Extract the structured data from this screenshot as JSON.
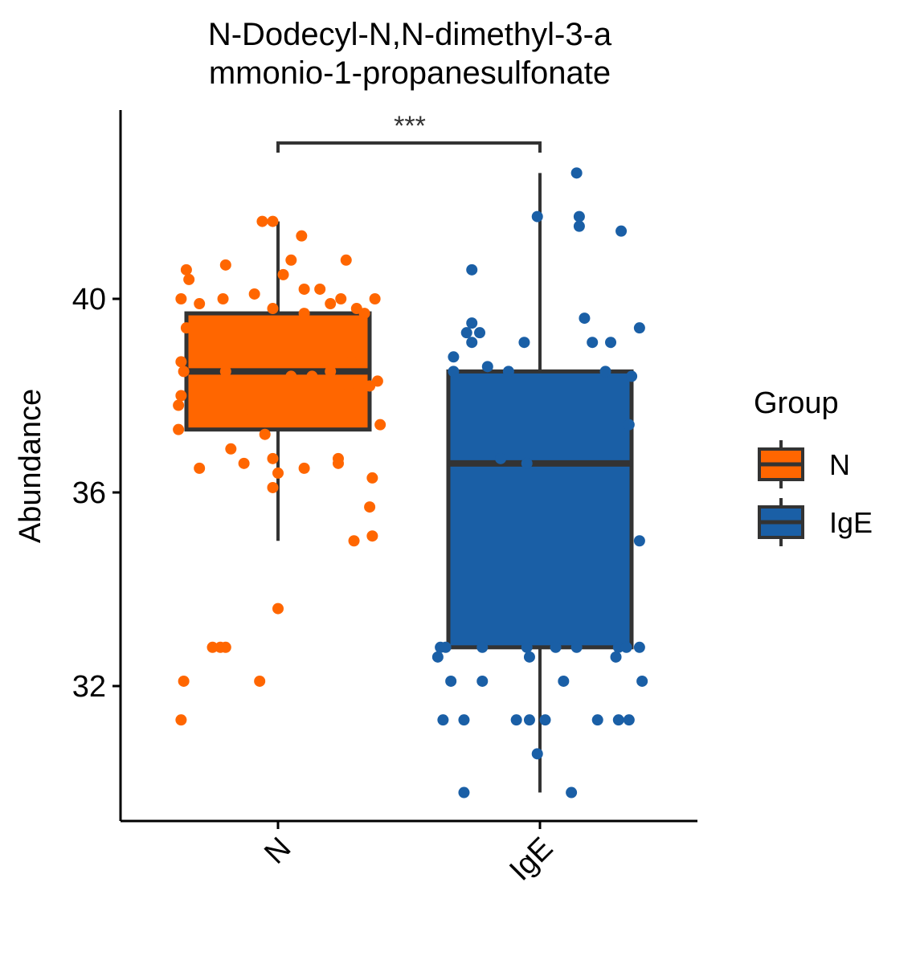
{
  "chart_data": {
    "type": "box",
    "title_lines": [
      "N-Dodecyl-N,N-dimethyl-3-a",
      "mmonio-1-propanesulfonate"
    ],
    "ylabel": "Abundance",
    "xlabel": "",
    "categories": [
      "N",
      "IgE"
    ],
    "y_ticks": [
      32,
      36,
      40
    ],
    "ylim": [
      29.4,
      43.6
    ],
    "legend": {
      "title": "Group",
      "placement": "right",
      "entries": [
        "N",
        "IgE"
      ]
    },
    "significance": {
      "groups": [
        "N",
        "IgE"
      ],
      "label": "***"
    },
    "colors": {
      "N": "#FF6600",
      "IgE": "#1A5FA6",
      "box_edge": "#333333"
    },
    "boxes": [
      {
        "group": "N",
        "whisker_low": 35.0,
        "q1": 37.3,
        "median": 38.5,
        "q3": 39.7,
        "whisker_high": 41.6
      },
      {
        "group": "IgE",
        "whisker_low": 29.8,
        "q1": 32.8,
        "median": 36.6,
        "q3": 38.5,
        "whisker_high": 42.6
      }
    ],
    "points": {
      "N": [
        [
          -0.37,
          40.0
        ],
        [
          -0.35,
          40.6
        ],
        [
          -0.34,
          40.4
        ],
        [
          -0.3,
          39.9
        ],
        [
          -0.21,
          40.0
        ],
        [
          -0.2,
          40.7
        ],
        [
          -0.09,
          40.1
        ],
        [
          -0.06,
          41.6
        ],
        [
          -0.02,
          41.6
        ],
        [
          0.05,
          40.8
        ],
        [
          0.09,
          41.3
        ],
        [
          0.02,
          40.5
        ],
        [
          0.1,
          40.2
        ],
        [
          0.16,
          40.2
        ],
        [
          0.2,
          39.9
        ],
        [
          0.24,
          40.0
        ],
        [
          0.26,
          40.8
        ],
        [
          0.37,
          40.0
        ],
        [
          -0.35,
          39.4
        ],
        [
          -0.37,
          38.7
        ],
        [
          -0.36,
          38.5
        ],
        [
          -0.37,
          38.0
        ],
        [
          -0.38,
          37.8
        ],
        [
          -0.38,
          37.3
        ],
        [
          -0.3,
          38.2
        ],
        [
          -0.25,
          37.9
        ],
        [
          -0.2,
          38.5
        ],
        [
          -0.15,
          38.3
        ],
        [
          -0.1,
          37.7
        ],
        [
          -0.02,
          39.8
        ],
        [
          0.1,
          39.7
        ],
        [
          0.05,
          38.4
        ],
        [
          0.13,
          38.4
        ],
        [
          0.2,
          38.5
        ],
        [
          0.27,
          38.2
        ],
        [
          0.3,
          39.8
        ],
        [
          0.33,
          39.7
        ],
        [
          0.35,
          38.2
        ],
        [
          0.38,
          38.3
        ],
        [
          0.39,
          37.4
        ],
        [
          0.28,
          38.7
        ],
        [
          0.15,
          37.6
        ],
        [
          -0.05,
          37.2
        ],
        [
          -0.18,
          36.9
        ],
        [
          -0.3,
          36.5
        ],
        [
          -0.13,
          36.6
        ],
        [
          -0.02,
          36.7
        ],
        [
          0.0,
          36.4
        ],
        [
          0.1,
          36.5
        ],
        [
          0.23,
          36.7
        ],
        [
          0.23,
          36.6
        ],
        [
          0.36,
          36.3
        ],
        [
          -0.02,
          36.1
        ],
        [
          0.35,
          35.7
        ],
        [
          0.36,
          35.1
        ],
        [
          0.29,
          35.0
        ],
        [
          0.0,
          33.6
        ],
        [
          -0.25,
          32.8
        ],
        [
          -0.22,
          32.8
        ],
        [
          -0.2,
          32.8
        ],
        [
          -0.36,
          32.1
        ],
        [
          -0.07,
          32.1
        ],
        [
          -0.37,
          31.3
        ]
      ],
      "IgE": [
        [
          0.14,
          42.6
        ],
        [
          0.15,
          41.7
        ],
        [
          0.15,
          41.5
        ],
        [
          -0.01,
          41.7
        ],
        [
          0.31,
          41.4
        ],
        [
          -0.26,
          40.6
        ],
        [
          0.17,
          39.6
        ],
        [
          0.38,
          39.4
        ],
        [
          -0.26,
          39.5
        ],
        [
          -0.28,
          39.3
        ],
        [
          -0.23,
          39.3
        ],
        [
          -0.26,
          39.1
        ],
        [
          -0.06,
          39.1
        ],
        [
          0.2,
          39.1
        ],
        [
          0.27,
          39.1
        ],
        [
          -0.33,
          38.8
        ],
        [
          -0.2,
          38.6
        ],
        [
          -0.12,
          38.5
        ],
        [
          -0.33,
          38.5
        ],
        [
          0.25,
          38.5
        ],
        [
          0.35,
          38.4
        ],
        [
          0.34,
          37.4
        ],
        [
          -0.15,
          36.7
        ],
        [
          -0.05,
          36.6
        ],
        [
          0.38,
          35.0
        ],
        [
          -0.38,
          32.8
        ],
        [
          -0.36,
          32.8
        ],
        [
          -0.22,
          32.8
        ],
        [
          -0.05,
          32.8
        ],
        [
          0.06,
          32.8
        ],
        [
          0.14,
          32.8
        ],
        [
          0.3,
          32.8
        ],
        [
          0.33,
          32.8
        ],
        [
          0.38,
          32.8
        ],
        [
          -0.39,
          32.6
        ],
        [
          -0.04,
          32.6
        ],
        [
          0.29,
          32.6
        ],
        [
          -0.34,
          32.1
        ],
        [
          -0.22,
          32.1
        ],
        [
          0.09,
          32.1
        ],
        [
          0.39,
          32.1
        ],
        [
          -0.37,
          31.3
        ],
        [
          -0.29,
          31.3
        ],
        [
          -0.09,
          31.3
        ],
        [
          -0.04,
          31.3
        ],
        [
          0.02,
          31.3
        ],
        [
          0.22,
          31.3
        ],
        [
          0.3,
          31.3
        ],
        [
          0.34,
          31.3
        ],
        [
          -0.01,
          30.6
        ],
        [
          -0.29,
          29.8
        ],
        [
          0.12,
          29.8
        ]
      ]
    }
  }
}
